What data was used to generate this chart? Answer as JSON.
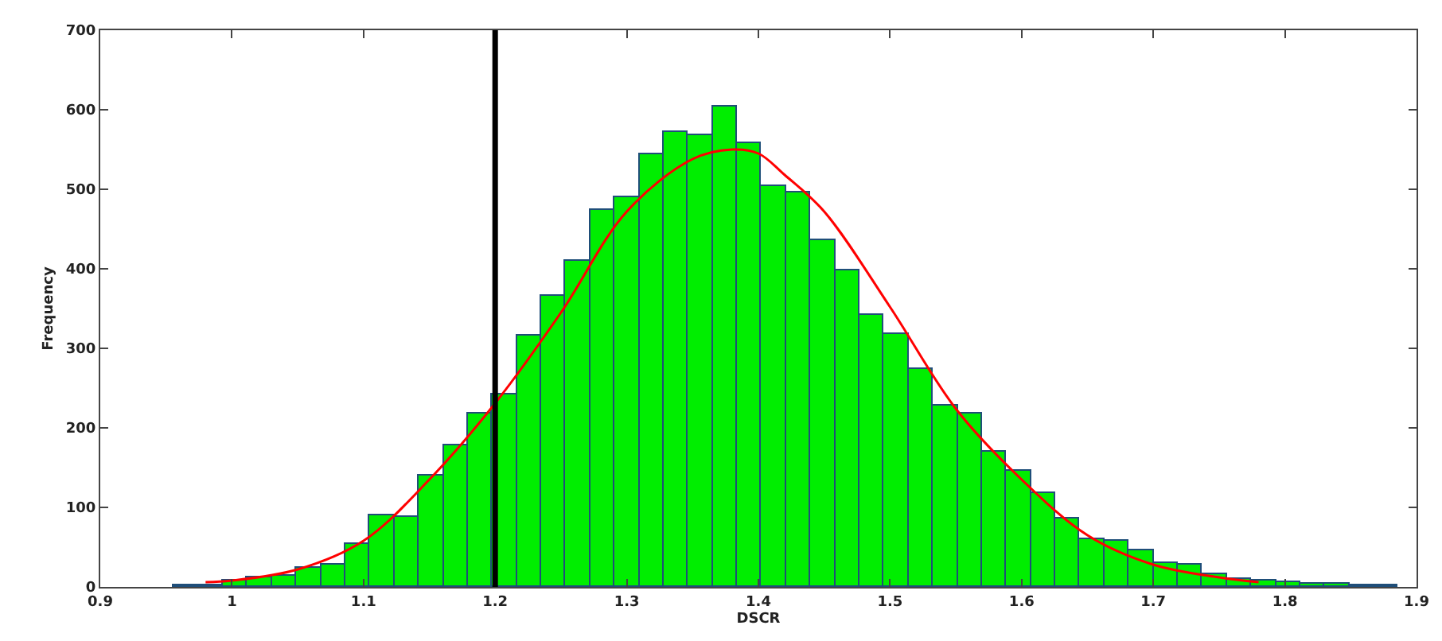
{
  "chart_data": {
    "type": "histogram",
    "xlabel": "DSCR",
    "ylabel": "Frequency",
    "xlim": [
      0.9,
      1.9
    ],
    "ylim": [
      0,
      700
    ],
    "xticks": [
      0.9,
      1,
      1.1,
      1.2,
      1.3,
      1.4,
      1.5,
      1.6,
      1.7,
      1.8,
      1.9
    ],
    "yticks": [
      0,
      100,
      200,
      300,
      400,
      500,
      600,
      700
    ],
    "series": [
      {
        "color": "#00ee00",
        "bins": [
          0.956,
          0.9746,
          0.9932,
          1.0118,
          1.0304,
          1.049,
          1.0676,
          1.0862,
          1.1048,
          1.1234,
          1.142,
          1.1606,
          1.1792,
          1.1978,
          1.2164,
          1.235,
          1.2536,
          1.2722,
          1.2908,
          1.3094,
          1.328,
          1.3466,
          1.3652,
          1.3838,
          1.4024,
          1.421,
          1.4396,
          1.4582,
          1.4768,
          1.4954,
          1.514,
          1.5326,
          1.5512,
          1.5698,
          1.5884,
          1.607,
          1.6256,
          1.6442,
          1.6628,
          1.6814,
          1.7,
          1.7186,
          1.7372,
          1.7558,
          1.7744,
          1.793,
          1.8116,
          1.8302,
          1.8488,
          1.8674,
          1.886
        ],
        "values": [
          3,
          3,
          9,
          13,
          15,
          25,
          29,
          55,
          90,
          88,
          141,
          179,
          218,
          243,
          316,
          367,
          410,
          475,
          491,
          545,
          573,
          568,
          605,
          559,
          505,
          496,
          437,
          399,
          343,
          319,
          275,
          229,
          218,
          170,
          146,
          118,
          87,
          61,
          58,
          46,
          31,
          28,
          17,
          11,
          8,
          6,
          4,
          5,
          2,
          2
        ]
      },
      {
        "type": "line",
        "color": "#ff0000",
        "x": [
          0.98,
          1.0,
          1.05,
          1.1,
          1.15,
          1.2,
          1.25,
          1.3,
          1.35,
          1.38,
          1.4,
          1.42,
          1.45,
          1.5,
          1.55,
          1.6,
          1.65,
          1.7,
          1.75,
          1.78
        ],
        "values": [
          6,
          8,
          22,
          58,
          135,
          231,
          345,
          472,
          538,
          550,
          545,
          518,
          472,
          352,
          224,
          135,
          65,
          28,
          12,
          6
        ]
      }
    ],
    "ref_lines": [
      {
        "axis": "x",
        "value": 1.2,
        "color": "#000000"
      }
    ]
  }
}
